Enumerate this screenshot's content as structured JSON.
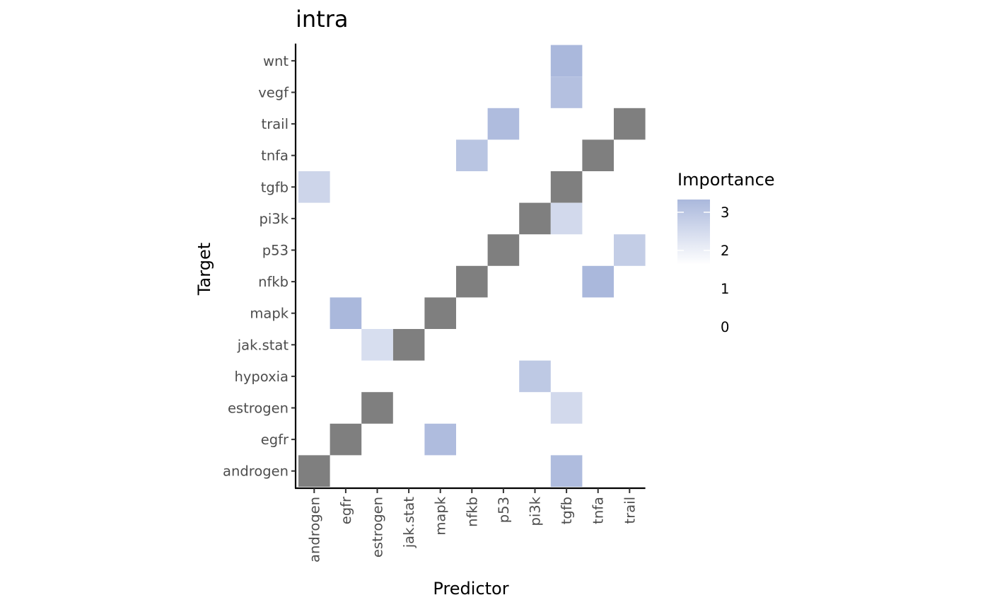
{
  "chart_data": {
    "type": "heatmap",
    "title": "intra",
    "xlabel": "Predictor",
    "ylabel": "Target",
    "x_categories": [
      "androgen",
      "egfr",
      "estrogen",
      "jak.stat",
      "mapk",
      "nfkb",
      "p53",
      "pi3k",
      "tgfb",
      "tnfa",
      "trail"
    ],
    "y_categories": [
      "androgen",
      "egfr",
      "estrogen",
      "hypoxia",
      "jak.stat",
      "mapk",
      "nfkb",
      "p53",
      "pi3k",
      "tgfb",
      "tnfa",
      "trail",
      "vegf",
      "wnt"
    ],
    "cells": [
      {
        "x": "androgen",
        "y": "androgen",
        "value": null,
        "self": true
      },
      {
        "x": "egfr",
        "y": "egfr",
        "value": null,
        "self": true
      },
      {
        "x": "estrogen",
        "y": "estrogen",
        "value": null,
        "self": true
      },
      {
        "x": "jak.stat",
        "y": "jak.stat",
        "value": null,
        "self": true
      },
      {
        "x": "mapk",
        "y": "mapk",
        "value": null,
        "self": true
      },
      {
        "x": "nfkb",
        "y": "nfkb",
        "value": null,
        "self": true
      },
      {
        "x": "p53",
        "y": "p53",
        "value": null,
        "self": true
      },
      {
        "x": "pi3k",
        "y": "pi3k",
        "value": null,
        "self": true
      },
      {
        "x": "tgfb",
        "y": "tgfb",
        "value": null,
        "self": true
      },
      {
        "x": "tnfa",
        "y": "tnfa",
        "value": null,
        "self": true
      },
      {
        "x": "trail",
        "y": "trail",
        "value": null,
        "self": true
      },
      {
        "x": "tgfb",
        "y": "wnt",
        "value": 3.3
      },
      {
        "x": "tgfb",
        "y": "vegf",
        "value": 3.1
      },
      {
        "x": "p53",
        "y": "trail",
        "value": 3.2
      },
      {
        "x": "nfkb",
        "y": "tnfa",
        "value": 3.0
      },
      {
        "x": "androgen",
        "y": "tgfb",
        "value": 2.6
      },
      {
        "x": "tgfb",
        "y": "pi3k",
        "value": 2.5
      },
      {
        "x": "trail",
        "y": "p53",
        "value": 2.8
      },
      {
        "x": "tnfa",
        "y": "nfkb",
        "value": 3.3
      },
      {
        "x": "egfr",
        "y": "mapk",
        "value": 3.3
      },
      {
        "x": "estrogen",
        "y": "jak.stat",
        "value": 2.4
      },
      {
        "x": "pi3k",
        "y": "hypoxia",
        "value": 2.9
      },
      {
        "x": "tgfb",
        "y": "estrogen",
        "value": 2.5
      },
      {
        "x": "mapk",
        "y": "egfr",
        "value": 3.2
      },
      {
        "x": "tgfb",
        "y": "androgen",
        "value": 3.2
      }
    ],
    "self_color": "#7f7f7f",
    "color_scale": {
      "low": "#ffffff",
      "high": "#aab8dc",
      "min": 1.6,
      "max": 3.3
    },
    "legend": {
      "title": "Importance",
      "position": "right",
      "ticks": [
        3,
        2,
        1,
        0
      ]
    }
  }
}
